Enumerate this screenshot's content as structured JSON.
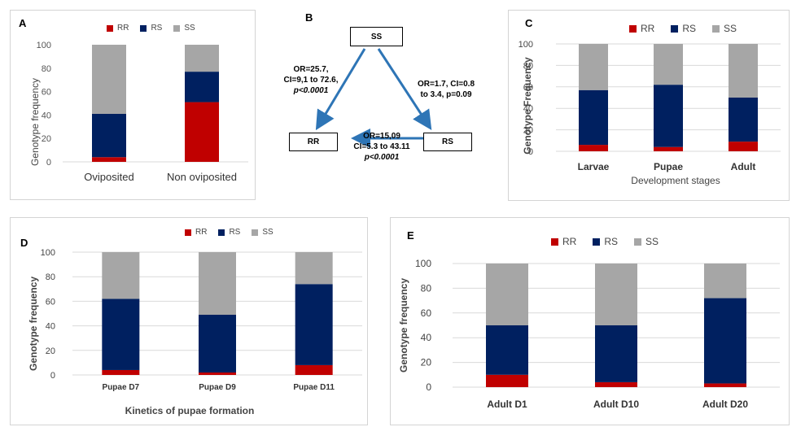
{
  "colors": {
    "RR": "#c00000",
    "RS": "#002060",
    "SS": "#a6a6a6",
    "grid": "#d9d9d9",
    "arrow": "#2e75b6"
  },
  "diagram": {
    "label": "B",
    "nodes": {
      "ss": "SS",
      "rr": "RR",
      "rs": "RS"
    },
    "edges": {
      "ss_rr": [
        "OR=25.7,",
        "CI=9,1 to 72.6,",
        "p<0.0001"
      ],
      "ss_rs": [
        "OR=1.7, CI=0.8",
        "to 3.4, p=0.09"
      ],
      "rs_rr": [
        "OR=15,09",
        "CI=5.3 to 43.11",
        "p<0.0001"
      ]
    }
  },
  "chart_data": [
    {
      "panel": "A",
      "type": "bar",
      "stacked": true,
      "categories": [
        "Oviposited",
        "Non oviposited"
      ],
      "series": [
        {
          "name": "RR",
          "values": [
            4,
            51
          ]
        },
        {
          "name": "RS",
          "values": [
            37,
            26
          ]
        },
        {
          "name": "SS",
          "values": [
            59,
            23
          ]
        }
      ],
      "ticks": [
        "100",
        "80",
        "60",
        "40",
        "20",
        "0"
      ],
      "ylabel": "Genotype frequency",
      "xlabel": "",
      "ylim": [
        0,
        100
      ],
      "legend": "top",
      "grid": false
    },
    {
      "panel": "C",
      "type": "bar",
      "stacked": true,
      "categories": [
        "Larvae",
        "Pupae",
        "Adult"
      ],
      "series": [
        {
          "name": "RR",
          "values": [
            6,
            4,
            9
          ]
        },
        {
          "name": "RS",
          "values": [
            51,
            58,
            41
          ]
        },
        {
          "name": "SS",
          "values": [
            43,
            38,
            50
          ]
        }
      ],
      "ticks": [
        "100",
        "80",
        "60",
        "40",
        "20",
        "0"
      ],
      "ylabel": "Genotype Frequency",
      "xlabel": "Development stages",
      "ylim": [
        0,
        100
      ],
      "legend": "top",
      "grid": true
    },
    {
      "panel": "D",
      "type": "bar",
      "stacked": true,
      "categories": [
        "Pupae D7",
        "Pupae D9",
        "Pupae D11"
      ],
      "series": [
        {
          "name": "RR",
          "values": [
            4,
            2,
            8
          ]
        },
        {
          "name": "RS",
          "values": [
            58,
            47,
            66
          ]
        },
        {
          "name": "SS",
          "values": [
            38,
            51,
            26
          ]
        }
      ],
      "ticks": [
        "100",
        "80",
        "60",
        "40",
        "20",
        "0"
      ],
      "ylabel": "Genotype frequency",
      "xlabel": "Kinetics of pupae formation",
      "ylim": [
        0,
        100
      ],
      "legend": "top",
      "grid": true
    },
    {
      "panel": "E",
      "type": "bar",
      "stacked": true,
      "categories": [
        "Adult D1",
        "Adult D10",
        "Adult D20"
      ],
      "series": [
        {
          "name": "RR",
          "values": [
            10,
            4,
            3
          ]
        },
        {
          "name": "RS",
          "values": [
            40,
            46,
            69
          ]
        },
        {
          "name": "SS",
          "values": [
            50,
            50,
            28
          ]
        }
      ],
      "ticks": [
        "100",
        "80",
        "60",
        "40",
        "20",
        "0"
      ],
      "ylabel": "Genotype frequency",
      "xlabel": "",
      "ylim": [
        0,
        100
      ],
      "legend": "top",
      "grid": true
    }
  ]
}
